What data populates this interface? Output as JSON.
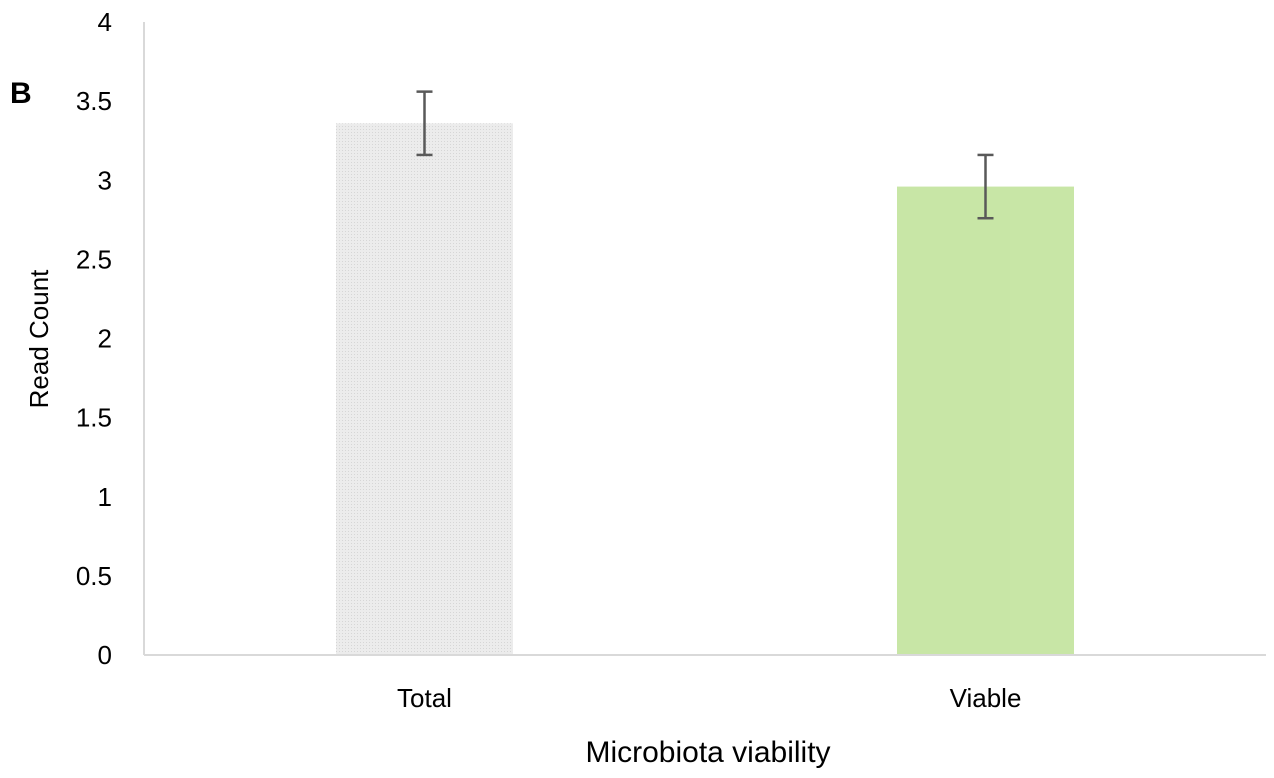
{
  "panel_label": "B",
  "chart_data": {
    "type": "bar",
    "categories": [
      "Total",
      "Viable"
    ],
    "values": [
      3.36,
      2.96
    ],
    "error": [
      0.2,
      0.2
    ],
    "bar_colors": [
      "#e6e6e6",
      "#c8e6a6"
    ],
    "xlabel": "Microbiota viability",
    "ylabel": "Read Count",
    "ylim": [
      0,
      4
    ],
    "yticks": [
      "0",
      "0.5",
      "1",
      "1.5",
      "2",
      "2.5",
      "3",
      "3.5",
      "4"
    ],
    "grid": false
  }
}
